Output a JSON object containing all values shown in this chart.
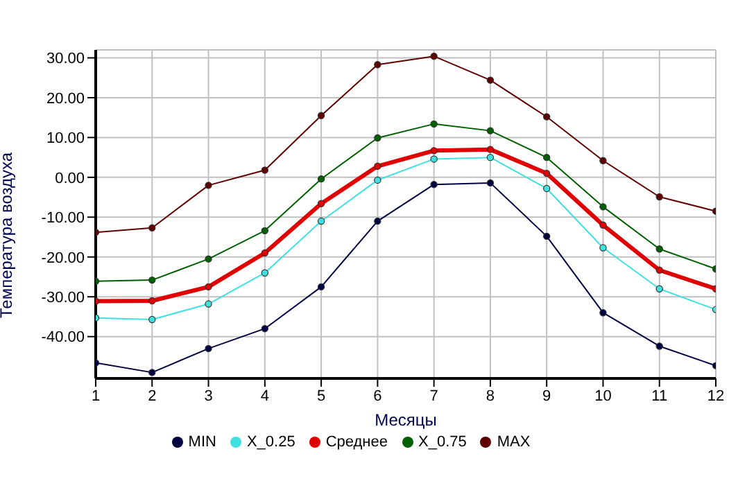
{
  "chart_data": {
    "type": "line",
    "xlabel": "Месяцы",
    "ylabel": "Температура воздуха",
    "x": [
      1,
      2,
      3,
      4,
      5,
      6,
      7,
      8,
      9,
      10,
      11,
      12
    ],
    "xlim": [
      1,
      12
    ],
    "xticks": [
      1,
      2,
      3,
      4,
      5,
      6,
      7,
      8,
      9,
      10,
      11,
      12
    ],
    "ylim": [
      -50.5,
      32
    ],
    "yticks": [
      {
        "value": 30,
        "label": "30.00"
      },
      {
        "value": 20,
        "label": "20.00"
      },
      {
        "value": 10,
        "label": "10.00"
      },
      {
        "value": 0,
        "label": "0.00"
      },
      {
        "value": -10,
        "label": "-10.00"
      },
      {
        "value": -20,
        "label": "-20.00"
      },
      {
        "value": -30,
        "label": "-30.00"
      },
      {
        "value": -40,
        "label": "-40.00"
      }
    ],
    "grid": true,
    "legend": "bottom",
    "marker": "circle",
    "line_style": "solid",
    "series": [
      {
        "name": "MIN",
        "color": "#000040",
        "values": [
          -46.6,
          -49,
          -43,
          -38,
          -27.5,
          -11,
          -1.8,
          -1.4,
          -14.8,
          -34,
          -42.4,
          -47.3
        ]
      },
      {
        "name": "X_0.25",
        "color": "#40e0e0",
        "values": [
          -35.3,
          -35.7,
          -31.8,
          -24,
          -11,
          -0.7,
          4.6,
          5,
          -2.8,
          -17.7,
          -28,
          -33.2
        ]
      },
      {
        "name": "Среднее",
        "color": "#e00000",
        "values": [
          -31.1,
          -31,
          -27.5,
          -19,
          -6.6,
          2.8,
          6.7,
          7,
          1,
          -12,
          -23.3,
          -28
        ]
      },
      {
        "name": "X_0.75",
        "color": "#006000",
        "values": [
          -26.1,
          -25.8,
          -20.5,
          -13.4,
          -0.4,
          9.9,
          13.4,
          11.7,
          5,
          -7.4,
          -18,
          -23
        ]
      },
      {
        "name": "MAX",
        "color": "#600000",
        "values": [
          -13.8,
          -12.7,
          -2,
          1.8,
          15.5,
          28.3,
          30.4,
          24.4,
          15.2,
          4.2,
          -4.9,
          -8.5
        ]
      }
    ]
  }
}
